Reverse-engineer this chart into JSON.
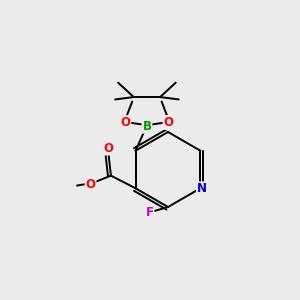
{
  "background_color": "#ebebeb",
  "bond_color": "#000000",
  "atom_colors": {
    "O": "#ff0000",
    "N": "#0000cc",
    "F": "#cc00cc",
    "B": "#009900",
    "C": "#000000"
  },
  "font_size": 8.5,
  "line_width": 1.4
}
